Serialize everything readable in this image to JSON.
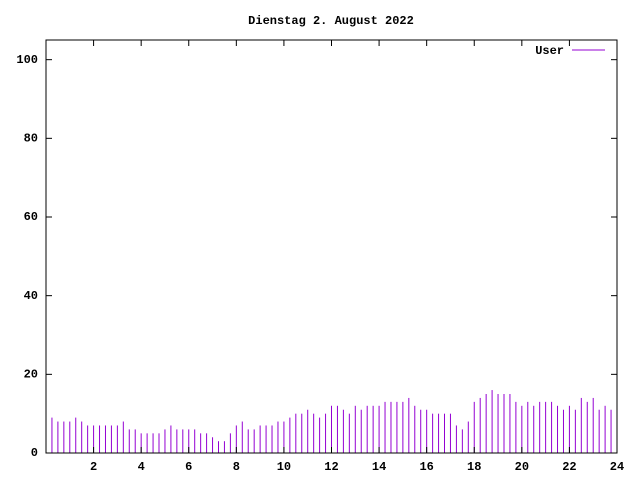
{
  "chart_data": {
    "type": "impulse",
    "title": "Dienstag 2. August 2022",
    "series": [
      {
        "name": "User",
        "color": "#9400d3",
        "x": [
          0,
          0.25,
          0.5,
          0.75,
          1,
          1.25,
          1.5,
          1.75,
          2,
          2.25,
          2.5,
          2.75,
          3,
          3.25,
          3.5,
          3.75,
          4,
          4.25,
          4.5,
          4.75,
          5,
          5.25,
          5.5,
          5.75,
          6,
          6.25,
          6.5,
          6.75,
          7,
          7.25,
          7.5,
          7.75,
          8,
          8.25,
          8.5,
          8.75,
          9,
          9.25,
          9.5,
          9.75,
          10,
          10.25,
          10.5,
          10.75,
          11,
          11.25,
          11.5,
          11.75,
          12,
          12.25,
          12.5,
          12.75,
          13,
          13.25,
          13.5,
          13.75,
          14,
          14.25,
          14.5,
          14.75,
          15,
          15.25,
          15.5,
          15.75,
          16,
          16.25,
          16.5,
          16.75,
          17,
          17.25,
          17.5,
          17.75,
          18,
          18.25,
          18.5,
          18.75,
          19,
          19.25,
          19.5,
          19.75,
          20,
          20.25,
          20.5,
          20.75,
          21,
          21.25,
          21.5,
          21.75,
          22,
          22.25,
          22.5,
          22.75,
          23,
          23.25,
          23.5,
          23.75
        ],
        "values": [
          11,
          9,
          8,
          8,
          8,
          9,
          8,
          7,
          7,
          7,
          7,
          7,
          7,
          8,
          6,
          6,
          5,
          5,
          5,
          5,
          6,
          7,
          6,
          6,
          6,
          6,
          5,
          5,
          4,
          3,
          3,
          5,
          7,
          8,
          6,
          6,
          7,
          7,
          7,
          8,
          8,
          9,
          10,
          10,
          11,
          10,
          9,
          10,
          12,
          12,
          11,
          10,
          12,
          11,
          12,
          12,
          12,
          13,
          13,
          13,
          13,
          14,
          12,
          11,
          11,
          10,
          10,
          10,
          10,
          7,
          6,
          8,
          13,
          14,
          15,
          16,
          15,
          15,
          15,
          13,
          12,
          13,
          12,
          13,
          13,
          13,
          12,
          11,
          12,
          11,
          14,
          13,
          14,
          11,
          12,
          11
        ]
      }
    ],
    "xlim": [
      0,
      24
    ],
    "xticks": [
      2,
      4,
      6,
      8,
      10,
      12,
      14,
      16,
      18,
      20,
      22,
      24
    ],
    "ylim": [
      0,
      105
    ],
    "yticks": [
      0,
      20,
      40,
      60,
      80,
      100
    ]
  }
}
